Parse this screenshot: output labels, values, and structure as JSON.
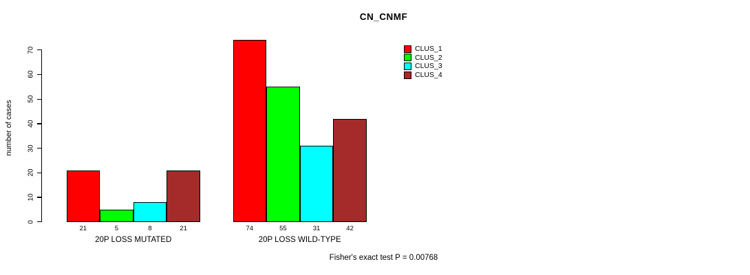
{
  "chart_data": {
    "type": "bar",
    "title": "CN_CNMF",
    "ylabel": "number of cases",
    "xlabel": "",
    "ylim": [
      0,
      70
    ],
    "yticks": [
      0,
      10,
      20,
      30,
      40,
      50,
      60,
      70
    ],
    "grid": false,
    "legend_position": "top-right",
    "categories": [
      "20P LOSS MUTATED",
      "20P LOSS WILD-TYPE"
    ],
    "series": [
      {
        "name": "CLUS_1",
        "color": "#ff0000",
        "values": [
          21,
          74
        ]
      },
      {
        "name": "CLUS_2",
        "color": "#00ff00",
        "values": [
          5,
          55
        ]
      },
      {
        "name": "CLUS_3",
        "color": "#00ffff",
        "values": [
          8,
          31
        ]
      },
      {
        "name": "CLUS_4",
        "color": "#a52a2a",
        "values": [
          21,
          42
        ]
      }
    ],
    "bar_value_labels": [
      [
        21,
        5,
        8,
        21
      ],
      [
        74,
        55,
        31,
        42
      ]
    ],
    "annotation": "Fisher's exact test P = 0.00768"
  }
}
